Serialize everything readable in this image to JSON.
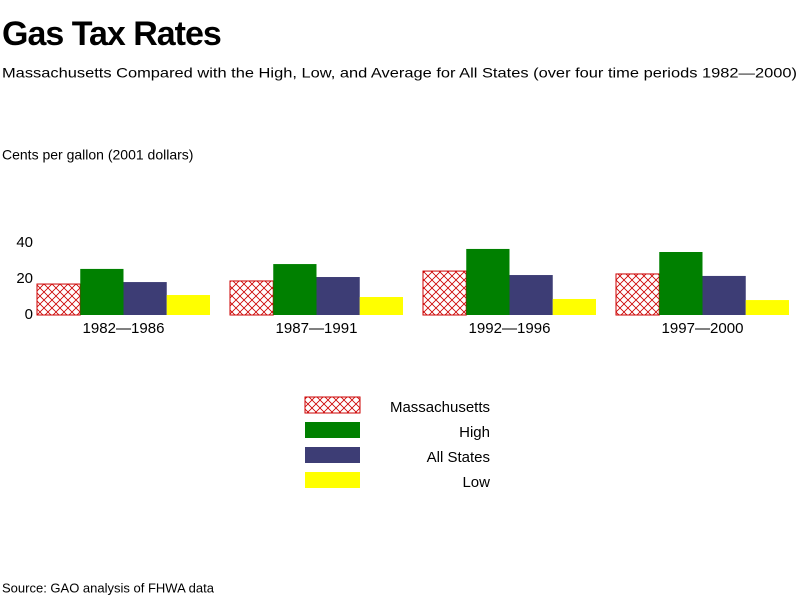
{
  "chart_data": {
    "type": "bar",
    "title": "Gas Tax Rates",
    "subtitle": "Massachusetts Compared with the High, Low, and Average for All States (over four time periods 1982—2000)",
    "ylabel": "Cents per gallon (2001 dollars)",
    "source": "Source: GAO analysis of FHWA data",
    "categories": [
      "1982—1986",
      "1987—1991",
      "1992—1996",
      "1997—2000"
    ],
    "series": [
      {
        "name": "Massachusetts",
        "color": "#cc0000",
        "hatch": true,
        "values": [
          17.2,
          18.9,
          24.4,
          22.8
        ]
      },
      {
        "name": "High",
        "color": "#008000",
        "values": [
          25.6,
          28.3,
          36.7,
          35
        ]
      },
      {
        "name": "All States",
        "color": "#3d3d75",
        "values": [
          18.3,
          21.1,
          22.2,
          21.7
        ]
      },
      {
        "name": "Low",
        "color": "#ffff00",
        "values": [
          11.1,
          10,
          8.9,
          8.3
        ]
      }
    ],
    "ylim": [
      0,
      40
    ],
    "yticks": [
      0,
      20,
      40
    ],
    "grid": false
  }
}
